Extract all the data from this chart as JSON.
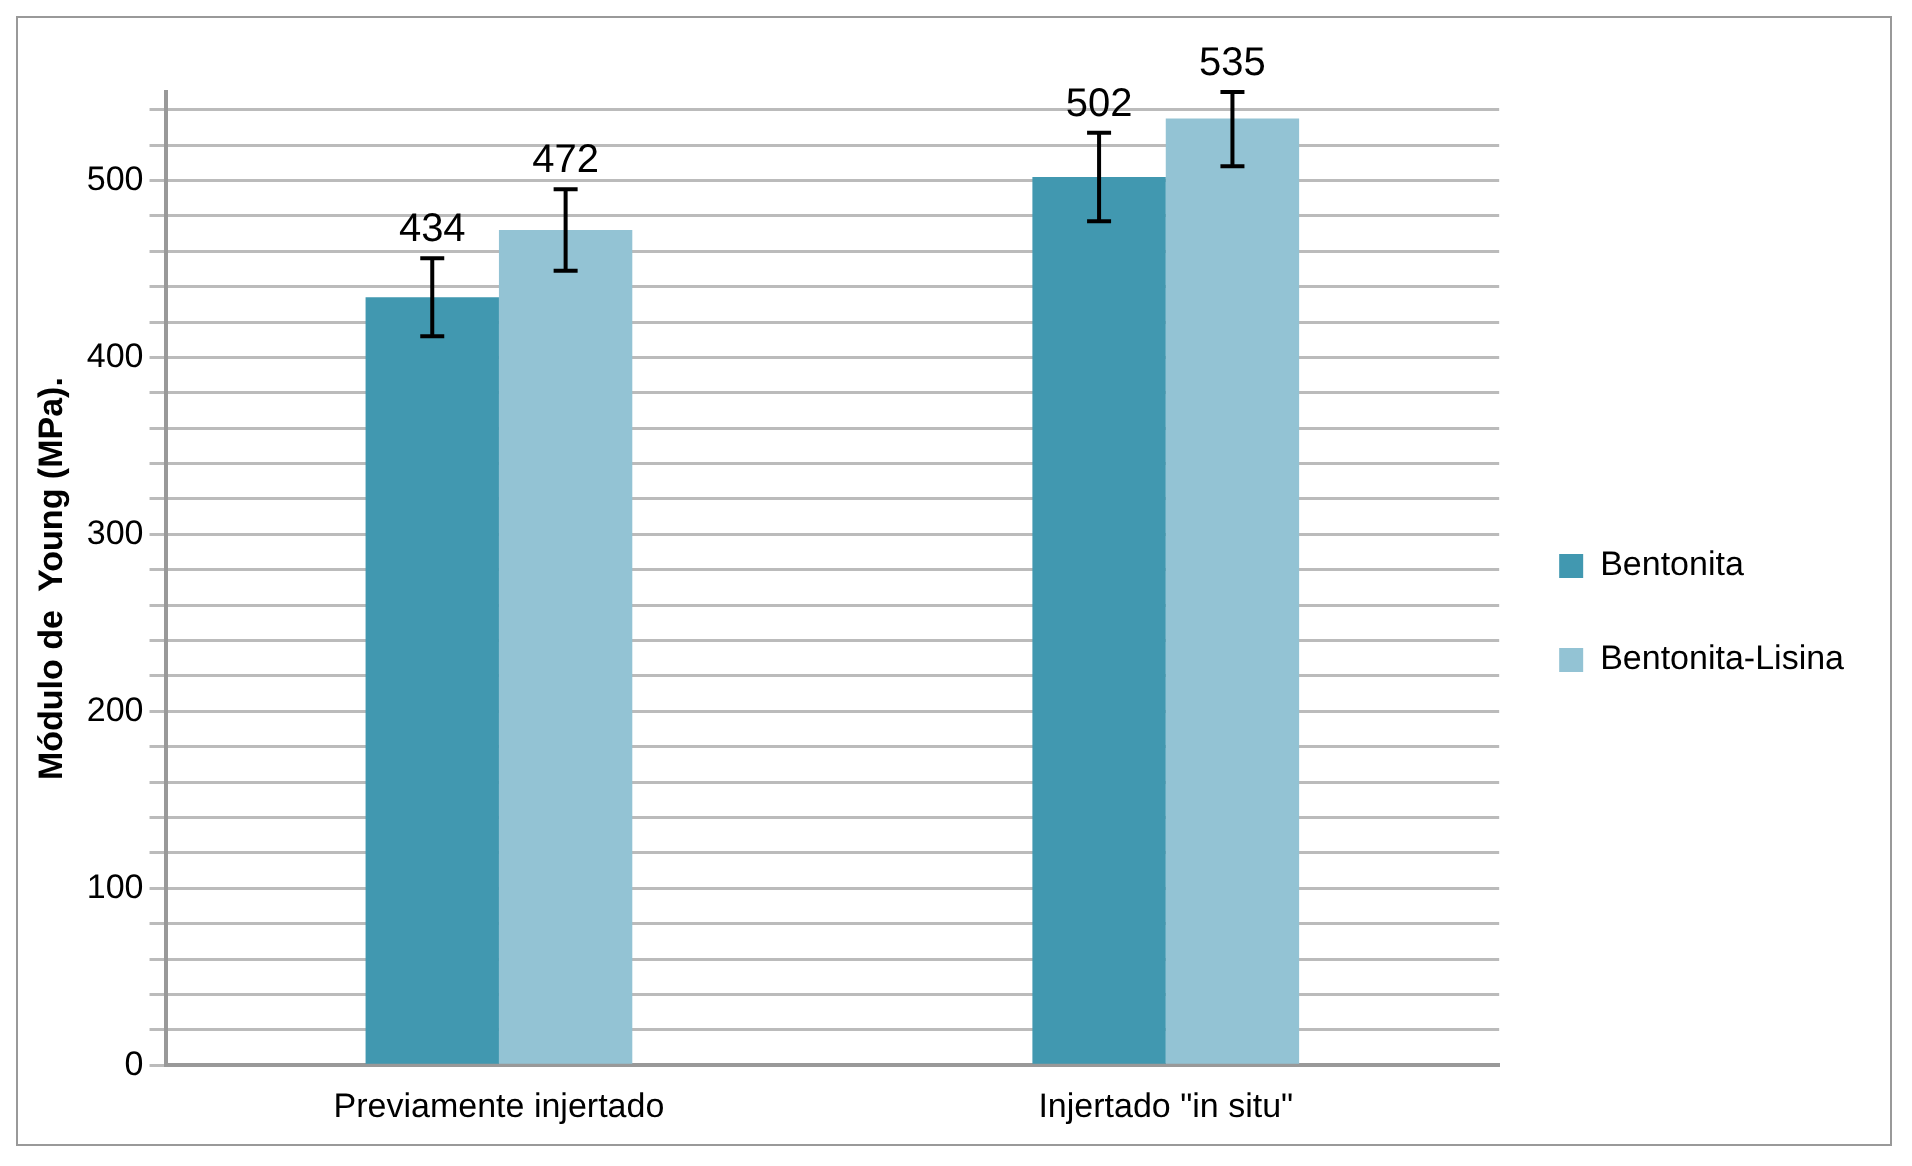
{
  "chart_data": {
    "type": "bar",
    "ylabel": "Módulo de  Young (MPa).",
    "categories": [
      "Previamente injertado",
      "Injertado \"in situ\""
    ],
    "series": [
      {
        "name": "Bentonita",
        "color": "#4198b0",
        "values": [
          434,
          502
        ],
        "errors": [
          22,
          25
        ]
      },
      {
        "name": "Bentonita-Lisina",
        "color": "#93c3d4",
        "values": [
          472,
          535
        ],
        "errors": [
          23,
          [
            508,
            550
          ]
        ]
      }
    ],
    "data_labels": true,
    "ylim": [
      0,
      550
    ],
    "yticks": [
      0,
      {
        "value": 20,
        "label": null
      },
      {
        "value": 40,
        "label": null
      },
      {
        "value": 60,
        "label": null
      },
      {
        "value": 80,
        "label": null
      },
      100,
      {
        "value": 120,
        "label": null
      },
      {
        "value": 140,
        "label": null
      },
      {
        "value": 160,
        "label": null
      },
      {
        "value": 180,
        "label": null
      },
      200,
      {
        "value": 220,
        "label": null
      },
      {
        "value": 240,
        "label": null
      },
      {
        "value": 260,
        "label": null
      },
      {
        "value": 280,
        "label": null
      },
      300,
      {
        "value": 320,
        "label": null
      },
      {
        "value": 340,
        "label": null
      },
      {
        "value": 360,
        "label": null
      },
      {
        "value": 380,
        "label": null
      },
      400,
      {
        "value": 420,
        "label": null
      },
      {
        "value": 440,
        "label": null
      },
      {
        "value": 460,
        "label": null
      },
      {
        "value": 480,
        "label": null
      },
      500,
      {
        "value": 520,
        "label": null
      },
      {
        "value": 540,
        "label": null
      }
    ],
    "grid": true,
    "legend": "right"
  }
}
